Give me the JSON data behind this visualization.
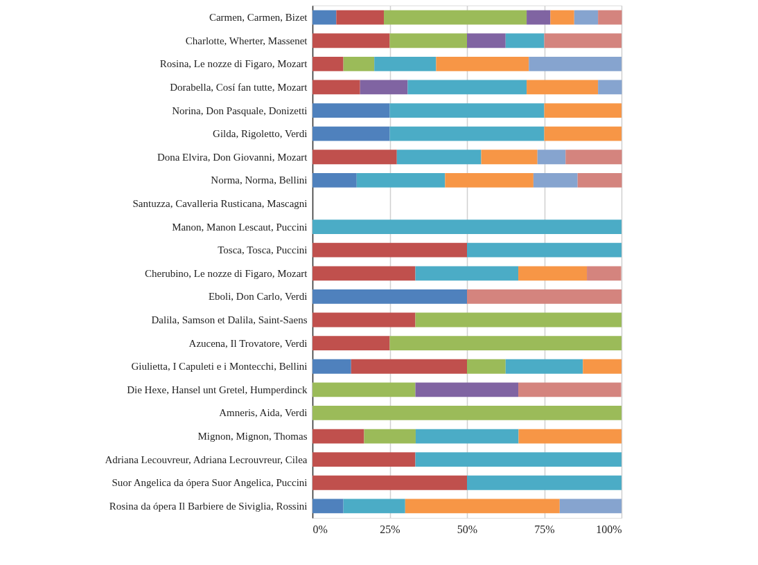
{
  "chart_data": {
    "type": "bar",
    "orientation": "horizontal",
    "stacked": true,
    "grid": "x",
    "legend": false,
    "categories": [
      "Carmen, Carmen, Bizet",
      "Charlotte, Wherter, Massenet",
      "Rosina, Le nozze di Figaro, Mozart",
      "Dorabella, Cosí fan tutte, Mozart",
      "Norina, Don Pasquale, Donizetti",
      "Gilda, Rigoletto, Verdi",
      "Dona Elvira, Don Giovanni, Mozart",
      "Norma, Norma, Bellini",
      "Santuzza, Cavalleria Rusticana, Mascagni",
      "Manon, Manon Lescaut, Puccini",
      "Tosca, Tosca, Puccini",
      "Cherubino, Le nozze di Figaro, Mozart",
      "Eboli, Don Carlo, Verdi",
      "Dalila, Samson et Dalila, Saint-Saens",
      "Azucena, Il Trovatore, Verdi",
      "Giulietta, I Capuleti e i Montecchi, Bellini",
      "Die Hexe, Hansel unt Gretel, Humperdinck",
      "Amneris, Aida, Verdi",
      "Mignon,  Mignon, Thomas",
      "Adriana Lecouvreur, Adriana Lecrouvreur, Cilea",
      "Suor Angelica da ópera Suor Angelica, Puccini",
      "Rosina da ópera Il Barbiere de Siviglia, Rossini"
    ],
    "series": [
      {
        "color": "#4f81bd",
        "values": [
          7.7,
          null,
          null,
          null,
          25,
          25,
          null,
          14.3,
          null,
          null,
          null,
          null,
          50,
          null,
          null,
          12.5,
          null,
          null,
          null,
          null,
          null,
          10
        ]
      },
      {
        "color": "#c0504d",
        "values": [
          15.4,
          25,
          10,
          15.4,
          null,
          null,
          27.3,
          null,
          null,
          null,
          50,
          33.3,
          null,
          33.3,
          25,
          37.5,
          null,
          null,
          16.7,
          33.3,
          50,
          null
        ]
      },
      {
        "color": "#9bbb59",
        "values": [
          46.2,
          25,
          10,
          null,
          null,
          null,
          null,
          null,
          null,
          null,
          null,
          null,
          null,
          66.7,
          75,
          12.5,
          33.3,
          100,
          16.7,
          null,
          null,
          null
        ]
      },
      {
        "color": "#8064a2",
        "values": [
          7.7,
          12.5,
          null,
          15.4,
          null,
          null,
          null,
          null,
          null,
          null,
          null,
          null,
          null,
          null,
          null,
          null,
          33.3,
          null,
          null,
          null,
          null,
          null
        ]
      },
      {
        "color": "#4bacc6",
        "values": [
          null,
          12.5,
          20,
          38.5,
          50,
          50,
          27.3,
          28.6,
          null,
          100,
          50,
          33.3,
          null,
          null,
          null,
          25,
          null,
          null,
          33.3,
          66.7,
          50,
          20
        ]
      },
      {
        "color": "#f79646",
        "values": [
          7.7,
          null,
          30,
          23.1,
          25,
          25,
          18.2,
          28.6,
          null,
          null,
          null,
          22.2,
          null,
          null,
          null,
          12.5,
          null,
          null,
          33.3,
          null,
          null,
          50
        ]
      },
      {
        "color": "#86a4cf",
        "values": [
          7.7,
          null,
          30,
          7.7,
          null,
          null,
          9.1,
          14.3,
          null,
          null,
          null,
          null,
          null,
          null,
          null,
          null,
          null,
          null,
          null,
          null,
          null,
          20
        ]
      },
      {
        "color": "#d4847e",
        "values": [
          7.7,
          25,
          null,
          null,
          null,
          null,
          18.2,
          14.3,
          null,
          null,
          null,
          11.1,
          50,
          null,
          null,
          null,
          33.3,
          null,
          null,
          null,
          null,
          null
        ]
      }
    ],
    "xlim": [
      0,
      100
    ],
    "xticks": [
      {
        "value": 0,
        "label": "0%"
      },
      {
        "value": 25,
        "label": "25%"
      },
      {
        "value": 50,
        "label": "50%"
      },
      {
        "value": 75,
        "label": "75%"
      },
      {
        "value": 100,
        "label": "100%"
      }
    ]
  }
}
